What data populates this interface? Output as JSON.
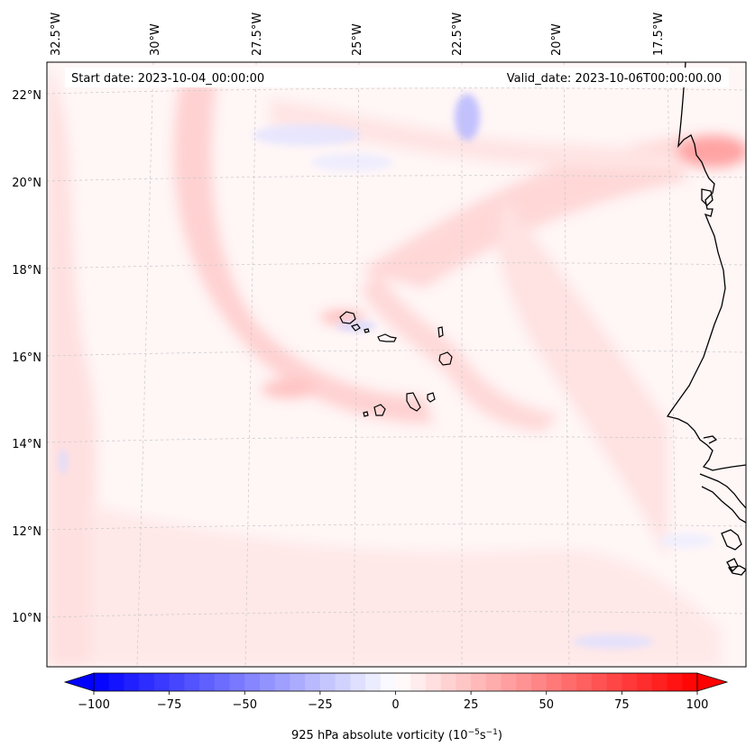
{
  "header": {
    "start_date": "Start date: 2023-10-04_00:00:00",
    "valid_date": "Valid_date: 2023-10-06T00:00:00.00"
  },
  "lon_labels": [
    {
      "id": "lon-32-5",
      "text": "32.5°W"
    },
    {
      "id": "lon-30",
      "text": "30°W"
    },
    {
      "id": "lon-27-5",
      "text": "27.5°W"
    },
    {
      "id": "lon-25",
      "text": "25°W"
    },
    {
      "id": "lon-22-5",
      "text": "22.5°W"
    },
    {
      "id": "lon-20",
      "text": "20°W"
    },
    {
      "id": "lon-17-5",
      "text": "17.5°W"
    }
  ],
  "lat_labels": [
    {
      "id": "lat-22",
      "text": "22°N"
    },
    {
      "id": "lat-20",
      "text": "20°N"
    },
    {
      "id": "lat-18",
      "text": "18°N"
    },
    {
      "id": "lat-16",
      "text": "16°N"
    },
    {
      "id": "lat-14",
      "text": "14°N"
    },
    {
      "id": "lat-12",
      "text": "12°N"
    },
    {
      "id": "lat-10",
      "text": "10°N"
    }
  ],
  "colorbar": {
    "min": -100,
    "max": 100,
    "ticks": [
      "−100",
      "−75",
      "−50",
      "−25",
      "0",
      "25",
      "50",
      "75",
      "100"
    ],
    "label": "925 hPa absolute vorticity (10",
    "label_exp1": "−5",
    "label_mid": "s",
    "label_exp2": "−1",
    "label_end": ")",
    "neg_color": "#0000ff",
    "pos_color": "#ff0000"
  },
  "colors": {
    "background_tint": "#fff5f5",
    "coast": "#000000",
    "gridline": "#bbbbbb"
  }
}
